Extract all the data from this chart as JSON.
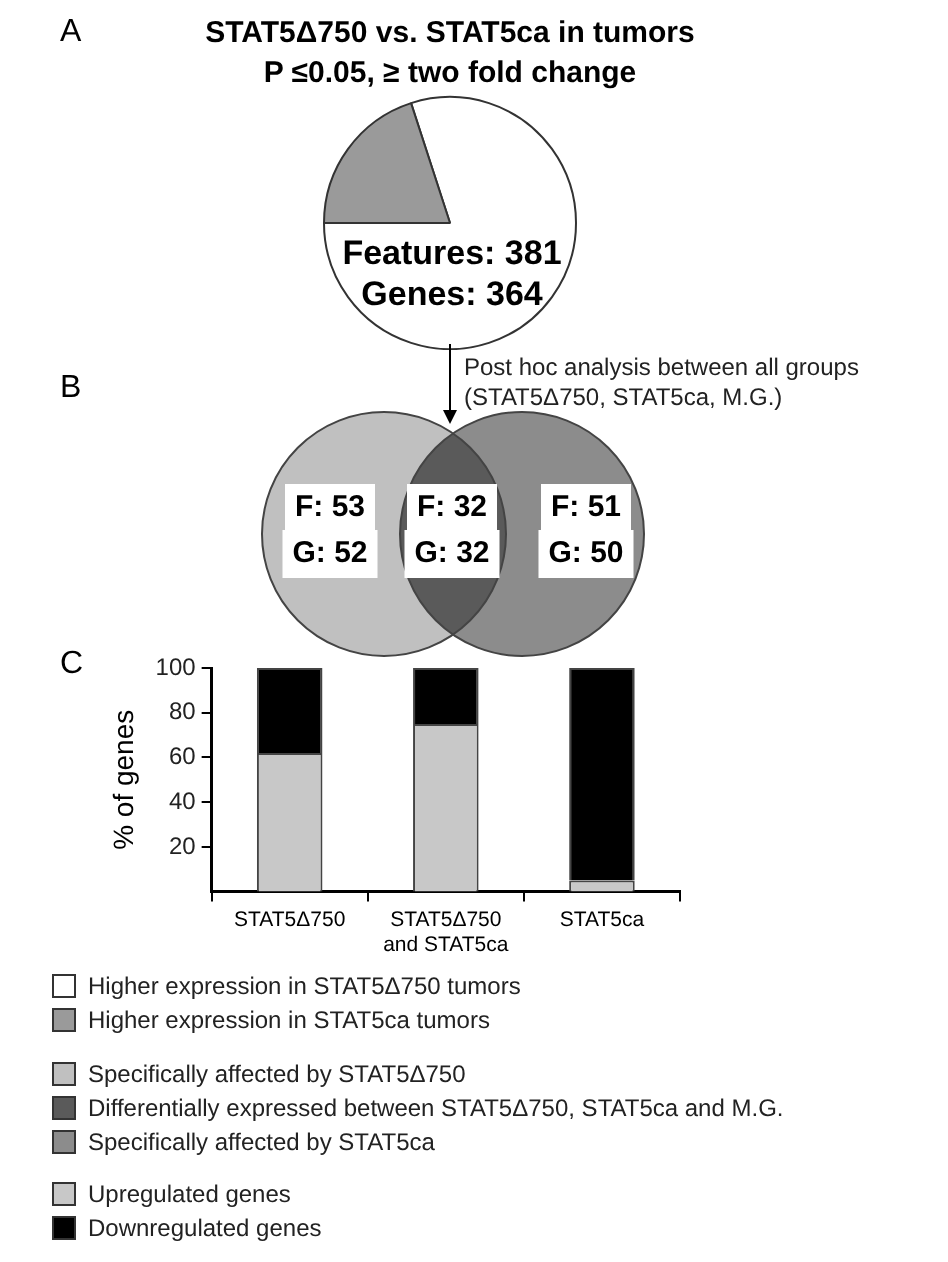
{
  "chart_data": [
    {
      "type": "pie",
      "title": "STAT5Δ750 vs. STAT5ca in tumors",
      "subtitle": "P ≤0.05, ≥ two fold change",
      "categories": [
        "Higher expression in STAT5Δ750 tumors",
        "Higher expression in STAT5ca tumors"
      ],
      "values": [
        80,
        20
      ],
      "colors": [
        "#ffffff",
        "#9a9a9a"
      ],
      "legend": "bottom",
      "annotations": [
        "A",
        "Features: 381",
        "Genes: 364"
      ]
    },
    {
      "type": "other",
      "categories": [
        "Specifically affected by STAT5Δ750",
        "Differentially expressed between STAT5Δ750, STAT5ca and M.G.",
        "Specifically affected by STAT5ca"
      ],
      "colors": [
        "#c0c0c0",
        "#5a5a5a",
        "#8c8c8c"
      ],
      "annotations": [
        "B",
        "Post hoc analysis between all groups",
        "(STAT5Δ750, STAT5ca, M.G.)",
        "F: 53",
        "G: 52",
        "F: 32",
        "G: 32",
        "F: 51",
        "G: 50"
      ]
    },
    {
      "type": "bar",
      "stacked": true,
      "categories": [
        "STAT5Δ750",
        "STAT5Δ750 and STAT5ca",
        "STAT5ca"
      ],
      "ylabel": "% of genes",
      "ylim": [
        0,
        100
      ],
      "yticks": [
        20,
        40,
        60,
        80,
        100
      ],
      "grid": false,
      "legend": "bottom",
      "annotations": [
        "C"
      ],
      "series": [
        {
          "name": "Upregulated genes",
          "color": "#c8c8c8",
          "values": [
            62,
            75,
            5
          ]
        },
        {
          "name": "Downregulated genes",
          "color": "#000000",
          "values": [
            38,
            25,
            95
          ]
        }
      ]
    }
  ]
}
